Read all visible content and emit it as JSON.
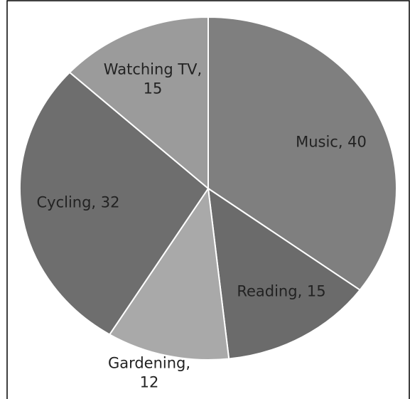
{
  "chart_data": {
    "type": "pie",
    "values": [
      40,
      15,
      12,
      32,
      15
    ],
    "value_labels": [
      "Music, 40",
      "Reading, 15",
      "Gardening, 12",
      "Cycling, 32",
      "Watching TV, 15"
    ],
    "colors": [
      "#7f7f7f",
      "#6b6b6b",
      "#a9a9a9",
      "#6e6e6e",
      "#9b9b9b"
    ]
  }
}
